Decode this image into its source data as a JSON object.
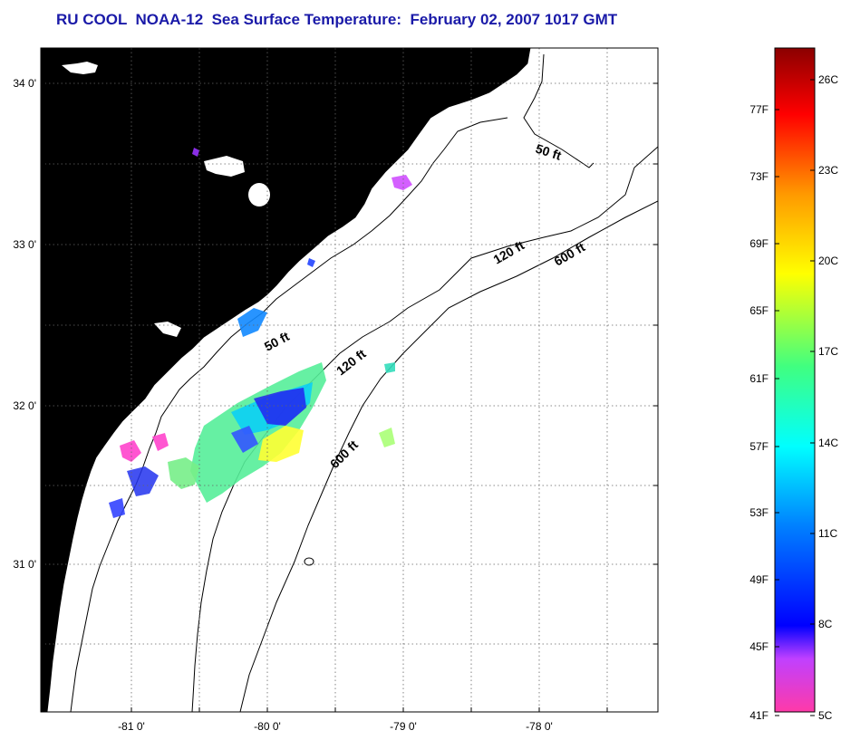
{
  "title": "RU COOL  NOAA-12  Sea Surface Temperature:  February 02, 2007 1017 GMT",
  "map": {
    "lat_ticks": [
      {
        "label": "34 0'",
        "value": 34.0
      },
      {
        "label": "33 0'",
        "value": 33.0
      },
      {
        "label": "32 0'",
        "value": 32.0
      },
      {
        "label": "31 0'",
        "value": 31.0
      }
    ],
    "lon_ticks": [
      {
        "label": "-81 0'",
        "value": -81.0
      },
      {
        "label": "-80 0'",
        "value": -80.0
      },
      {
        "label": "-79 0'",
        "value": -79.0
      },
      {
        "label": "-78 0'",
        "value": -78.0
      }
    ],
    "contours": [
      {
        "label": "50 ft",
        "instance": "north"
      },
      {
        "label": "50 ft",
        "instance": "south"
      },
      {
        "label": "120 ft",
        "instance": "north"
      },
      {
        "label": "120 ft",
        "instance": "south"
      },
      {
        "label": "600 ft",
        "instance": "north"
      },
      {
        "label": "600 ft",
        "instance": "south"
      }
    ],
    "colors": {
      "land": "#b0b0b0",
      "coastline": "#000000",
      "grid": "#555555"
    }
  },
  "colorbar": {
    "fahrenheit": [
      "77F",
      "73F",
      "69F",
      "65F",
      "61F",
      "57F",
      "53F",
      "49F",
      "45F",
      "41F"
    ],
    "celsius": [
      "26C",
      "23C",
      "20C",
      "17C",
      "14C",
      "11C",
      "8C",
      "5C"
    ]
  }
}
